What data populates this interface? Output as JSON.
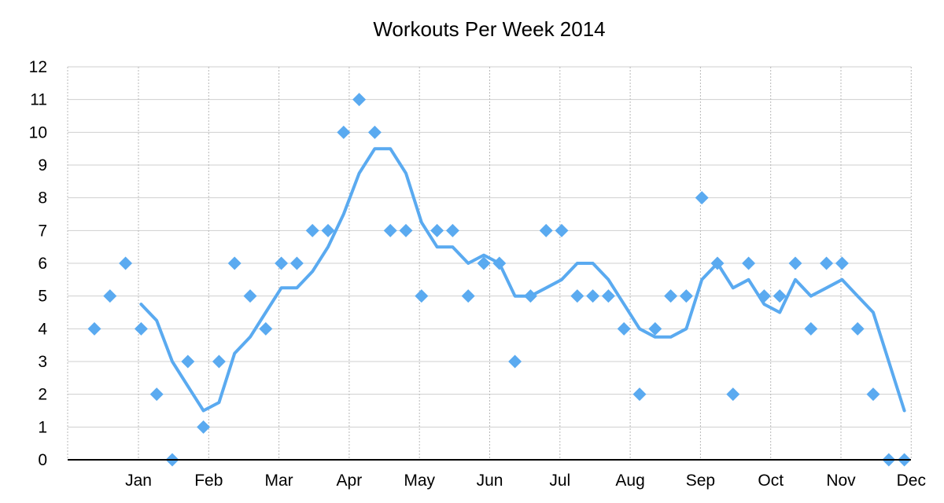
{
  "chart_data": {
    "type": "scatter",
    "title": "Workouts Per Week 2014",
    "xlabel": "",
    "ylabel": "",
    "ylim": [
      0,
      12
    ],
    "yticks": [
      0,
      1,
      2,
      3,
      4,
      5,
      6,
      7,
      8,
      9,
      10,
      11,
      12
    ],
    "x_tick_labels": [
      "Jan",
      "Feb",
      "Mar",
      "Apr",
      "May",
      "Jun",
      "Jul",
      "Aug",
      "Sep",
      "Oct",
      "Nov",
      "Dec"
    ],
    "grid": true,
    "colors": {
      "series": "#5aaaf0",
      "grid_major": "#cfcfcf",
      "grid_vertical": "#b8b8b8",
      "axis": "#000000"
    },
    "series": [
      {
        "type": "scatter",
        "values": [
          4,
          5,
          6,
          4,
          2,
          0,
          3,
          1,
          3,
          6,
          5,
          4,
          6,
          6,
          7,
          7,
          10,
          11,
          10,
          7,
          7,
          5,
          7,
          7,
          5,
          6,
          6,
          3,
          5,
          7,
          7,
          5,
          5,
          5,
          4,
          2,
          4,
          5,
          5,
          8,
          6,
          2,
          6,
          5,
          5,
          6,
          4,
          6,
          6,
          4,
          2,
          0,
          0
        ]
      },
      {
        "type": "line",
        "values": [
          null,
          null,
          null,
          4.75,
          4.25,
          3,
          2.25,
          1.5,
          1.75,
          3.25,
          3.75,
          4.5,
          5.25,
          5.25,
          5.75,
          6.5,
          7.5,
          8.75,
          9.5,
          9.5,
          8.75,
          7.25,
          6.5,
          6.5,
          6,
          6.25,
          6,
          5,
          5,
          5.25,
          5.5,
          6,
          6,
          5.5,
          4.75,
          4,
          3.75,
          3.75,
          4,
          5.5,
          6,
          5.25,
          5.5,
          4.75,
          4.5,
          5.5,
          5,
          5.25,
          5.5,
          5,
          4.5,
          3,
          1.5
        ]
      }
    ]
  }
}
